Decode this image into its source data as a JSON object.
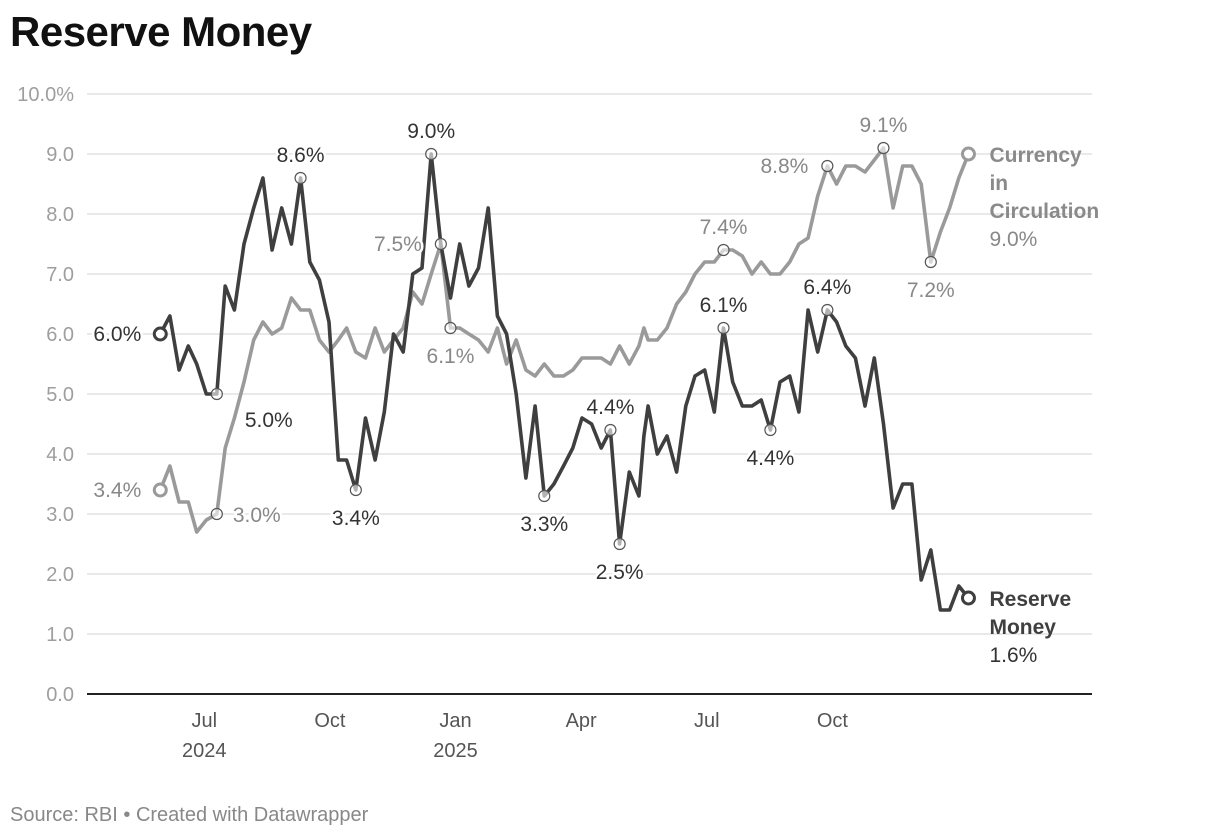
{
  "title": "Reserve Money",
  "footer": {
    "source": "Source: RBI",
    "separator": " • ",
    "credit": "Created with Datawrapper"
  },
  "chart_data": {
    "type": "line",
    "title": "Reserve Money",
    "ylim": [
      0,
      10
    ],
    "y_ticks": [
      {
        "value": 0,
        "label": "0.0"
      },
      {
        "value": 1,
        "label": "1.0"
      },
      {
        "value": 2,
        "label": "2.0"
      },
      {
        "value": 3,
        "label": "3.0"
      },
      {
        "value": 4,
        "label": "4.0"
      },
      {
        "value": 5,
        "label": "5.0"
      },
      {
        "value": 6,
        "label": "6.0"
      },
      {
        "value": 7,
        "label": "7.0"
      },
      {
        "value": 8,
        "label": "8.0"
      },
      {
        "value": 9,
        "label": "9.0"
      },
      {
        "value": 10,
        "label": "10.0%"
      }
    ],
    "x_range": [
      0,
      24
    ],
    "x_ticks": [
      {
        "value": 2.8,
        "label": "Jul",
        "sub": "2024"
      },
      {
        "value": 5.8,
        "label": "Oct",
        "sub": ""
      },
      {
        "value": 8.8,
        "label": "Jan",
        "sub": "2025"
      },
      {
        "value": 11.8,
        "label": "Apr",
        "sub": ""
      },
      {
        "value": 14.8,
        "label": "Jul",
        "sub": ""
      },
      {
        "value": 17.8,
        "label": "Oct",
        "sub": ""
      }
    ],
    "grid": true,
    "colors": {
      "reserve": "#3f3f3f",
      "currency": "#9a9a9a",
      "grid": "#e2e2e2",
      "axis_text": "#9e9e9e",
      "tick_text": "#555555"
    },
    "series": [
      {
        "name": "Reserve Money",
        "key": "reserve",
        "end_label": [
          "Reserve",
          "Money"
        ],
        "end_value": "1.6%",
        "points": [
          [
            1.75,
            6.0
          ],
          [
            1.98,
            6.3
          ],
          [
            2.2,
            5.4
          ],
          [
            2.42,
            5.8
          ],
          [
            2.62,
            5.5
          ],
          [
            2.85,
            5.0
          ],
          [
            3.1,
            5.0
          ],
          [
            3.3,
            6.8
          ],
          [
            3.52,
            6.4
          ],
          [
            3.75,
            7.5
          ],
          [
            3.98,
            8.1
          ],
          [
            4.2,
            8.6
          ],
          [
            4.42,
            7.4
          ],
          [
            4.65,
            8.1
          ],
          [
            4.88,
            7.5
          ],
          [
            5.1,
            8.6
          ],
          [
            5.32,
            7.2
          ],
          [
            5.55,
            6.9
          ],
          [
            5.78,
            6.2
          ],
          [
            6.0,
            3.9
          ],
          [
            6.2,
            3.9
          ],
          [
            6.42,
            3.4
          ],
          [
            6.65,
            4.6
          ],
          [
            6.88,
            3.9
          ],
          [
            7.1,
            4.7
          ],
          [
            7.32,
            6.0
          ],
          [
            7.55,
            5.7
          ],
          [
            7.78,
            7.0
          ],
          [
            8.0,
            7.1
          ],
          [
            8.22,
            9.0
          ],
          [
            8.45,
            7.5
          ],
          [
            8.68,
            6.6
          ],
          [
            8.9,
            7.5
          ],
          [
            9.12,
            6.8
          ],
          [
            9.35,
            7.1
          ],
          [
            9.58,
            8.1
          ],
          [
            9.8,
            6.3
          ],
          [
            10.02,
            6.0
          ],
          [
            10.25,
            5.0
          ],
          [
            10.48,
            3.6
          ],
          [
            10.7,
            4.8
          ],
          [
            10.92,
            3.3
          ],
          [
            11.15,
            3.5
          ],
          [
            11.38,
            3.8
          ],
          [
            11.6,
            4.1
          ],
          [
            11.82,
            4.6
          ],
          [
            12.05,
            4.5
          ],
          [
            12.28,
            4.1
          ],
          [
            12.5,
            4.4
          ],
          [
            12.72,
            2.5
          ],
          [
            12.95,
            3.7
          ],
          [
            13.18,
            3.3
          ],
          [
            13.3,
            4.3
          ],
          [
            13.4,
            4.8
          ],
          [
            13.62,
            4.0
          ],
          [
            13.85,
            4.3
          ],
          [
            14.08,
            3.7
          ],
          [
            14.3,
            4.8
          ],
          [
            14.52,
            5.3
          ],
          [
            14.75,
            5.4
          ],
          [
            14.98,
            4.7
          ],
          [
            15.2,
            6.1
          ],
          [
            15.42,
            5.2
          ],
          [
            15.65,
            4.8
          ],
          [
            15.88,
            4.8
          ],
          [
            16.1,
            4.9
          ],
          [
            16.32,
            4.4
          ],
          [
            16.55,
            5.2
          ],
          [
            16.78,
            5.3
          ],
          [
            17.0,
            4.7
          ],
          [
            17.22,
            6.4
          ],
          [
            17.45,
            5.7
          ],
          [
            17.68,
            6.4
          ],
          [
            17.9,
            6.2
          ],
          [
            18.12,
            5.8
          ],
          [
            18.35,
            5.6
          ],
          [
            18.58,
            4.8
          ],
          [
            18.8,
            5.6
          ],
          [
            19.02,
            4.5
          ],
          [
            19.25,
            3.1
          ],
          [
            19.48,
            3.5
          ],
          [
            19.7,
            3.5
          ],
          [
            19.92,
            1.9
          ],
          [
            20.15,
            2.4
          ],
          [
            20.38,
            1.4
          ],
          [
            20.6,
            1.4
          ],
          [
            20.82,
            1.8
          ],
          [
            21.05,
            1.6
          ]
        ],
        "annotations": [
          {
            "x": 1.75,
            "y": 6.0,
            "text": "6.0%",
            "pos": "left",
            "marker": "end"
          },
          {
            "x": 3.1,
            "y": 5.0,
            "text": "5.0%",
            "pos": "below-right",
            "marker": "small"
          },
          {
            "x": 5.1,
            "y": 8.6,
            "text": "8.6%",
            "pos": "above",
            "marker": "small"
          },
          {
            "x": 6.42,
            "y": 3.4,
            "text": "3.4%",
            "pos": "below",
            "marker": "small"
          },
          {
            "x": 8.22,
            "y": 9.0,
            "text": "9.0%",
            "pos": "above",
            "marker": "small"
          },
          {
            "x": 10.92,
            "y": 3.3,
            "text": "3.3%",
            "pos": "below",
            "marker": "small"
          },
          {
            "x": 12.5,
            "y": 4.4,
            "text": "4.4%",
            "pos": "above",
            "marker": "small"
          },
          {
            "x": 12.72,
            "y": 2.5,
            "text": "2.5%",
            "pos": "below",
            "marker": "small"
          },
          {
            "x": 15.2,
            "y": 6.1,
            "text": "6.1%",
            "pos": "above",
            "marker": "small"
          },
          {
            "x": 16.32,
            "y": 4.4,
            "text": "4.4%",
            "pos": "below",
            "marker": "small"
          },
          {
            "x": 17.68,
            "y": 6.4,
            "text": "6.4%",
            "pos": "above",
            "marker": "small"
          },
          {
            "x": 21.05,
            "y": 1.6,
            "text": "",
            "pos": "none",
            "marker": "end"
          }
        ]
      },
      {
        "name": "Currency in Circulation",
        "key": "currency",
        "end_label": [
          "Currency",
          "in",
          "Circulation"
        ],
        "end_value": "9.0%",
        "points": [
          [
            1.75,
            3.4
          ],
          [
            1.98,
            3.8
          ],
          [
            2.2,
            3.2
          ],
          [
            2.42,
            3.2
          ],
          [
            2.62,
            2.7
          ],
          [
            2.85,
            2.9
          ],
          [
            3.1,
            3.0
          ],
          [
            3.3,
            4.1
          ],
          [
            3.52,
            4.6
          ],
          [
            3.75,
            5.2
          ],
          [
            3.98,
            5.9
          ],
          [
            4.2,
            6.2
          ],
          [
            4.42,
            6.0
          ],
          [
            4.65,
            6.1
          ],
          [
            4.88,
            6.6
          ],
          [
            5.1,
            6.4
          ],
          [
            5.32,
            6.4
          ],
          [
            5.55,
            5.9
          ],
          [
            5.78,
            5.7
          ],
          [
            6.0,
            5.9
          ],
          [
            6.2,
            6.1
          ],
          [
            6.42,
            5.7
          ],
          [
            6.65,
            5.6
          ],
          [
            6.88,
            6.1
          ],
          [
            7.1,
            5.7
          ],
          [
            7.32,
            5.9
          ],
          [
            7.55,
            6.1
          ],
          [
            7.78,
            6.7
          ],
          [
            8.0,
            6.5
          ],
          [
            8.22,
            7.0
          ],
          [
            8.45,
            7.5
          ],
          [
            8.68,
            6.1
          ],
          [
            8.9,
            6.1
          ],
          [
            9.12,
            6.0
          ],
          [
            9.35,
            5.9
          ],
          [
            9.58,
            5.7
          ],
          [
            9.8,
            6.1
          ],
          [
            10.02,
            5.5
          ],
          [
            10.25,
            5.9
          ],
          [
            10.48,
            5.4
          ],
          [
            10.7,
            5.3
          ],
          [
            10.92,
            5.5
          ],
          [
            11.15,
            5.3
          ],
          [
            11.38,
            5.3
          ],
          [
            11.6,
            5.4
          ],
          [
            11.82,
            5.6
          ],
          [
            12.05,
            5.6
          ],
          [
            12.28,
            5.6
          ],
          [
            12.5,
            5.5
          ],
          [
            12.72,
            5.8
          ],
          [
            12.95,
            5.5
          ],
          [
            13.18,
            5.8
          ],
          [
            13.3,
            6.1
          ],
          [
            13.4,
            5.9
          ],
          [
            13.62,
            5.9
          ],
          [
            13.85,
            6.1
          ],
          [
            14.08,
            6.5
          ],
          [
            14.3,
            6.7
          ],
          [
            14.52,
            7.0
          ],
          [
            14.75,
            7.2
          ],
          [
            14.98,
            7.2
          ],
          [
            15.2,
            7.4
          ],
          [
            15.42,
            7.4
          ],
          [
            15.65,
            7.3
          ],
          [
            15.88,
            7.0
          ],
          [
            16.1,
            7.2
          ],
          [
            16.32,
            7.0
          ],
          [
            16.55,
            7.0
          ],
          [
            16.78,
            7.2
          ],
          [
            17.0,
            7.5
          ],
          [
            17.22,
            7.6
          ],
          [
            17.45,
            8.3
          ],
          [
            17.68,
            8.8
          ],
          [
            17.9,
            8.5
          ],
          [
            18.12,
            8.8
          ],
          [
            18.35,
            8.8
          ],
          [
            18.58,
            8.7
          ],
          [
            18.8,
            8.9
          ],
          [
            19.02,
            9.1
          ],
          [
            19.25,
            8.1
          ],
          [
            19.48,
            8.8
          ],
          [
            19.7,
            8.8
          ],
          [
            19.92,
            8.5
          ],
          [
            20.15,
            7.2
          ],
          [
            20.38,
            7.7
          ],
          [
            20.6,
            8.1
          ],
          [
            20.82,
            8.6
          ],
          [
            21.05,
            9.0
          ]
        ],
        "annotations": [
          {
            "x": 1.75,
            "y": 3.4,
            "text": "3.4%",
            "pos": "left",
            "marker": "end"
          },
          {
            "x": 3.1,
            "y": 3.0,
            "text": "3.0%",
            "pos": "right",
            "marker": "small"
          },
          {
            "x": 8.45,
            "y": 7.5,
            "text": "7.5%",
            "pos": "left",
            "marker": "small"
          },
          {
            "x": 8.68,
            "y": 6.1,
            "text": "6.1%",
            "pos": "below",
            "marker": "small"
          },
          {
            "x": 15.2,
            "y": 7.4,
            "text": "7.4%",
            "pos": "above",
            "marker": "small"
          },
          {
            "x": 17.68,
            "y": 8.8,
            "text": "8.8%",
            "pos": "left",
            "marker": "small"
          },
          {
            "x": 19.02,
            "y": 9.1,
            "text": "9.1%",
            "pos": "above",
            "marker": "small"
          },
          {
            "x": 20.15,
            "y": 7.2,
            "text": "7.2%",
            "pos": "below",
            "marker": "small"
          },
          {
            "x": 21.05,
            "y": 9.0,
            "text": "",
            "pos": "none",
            "marker": "end"
          }
        ]
      }
    ]
  }
}
